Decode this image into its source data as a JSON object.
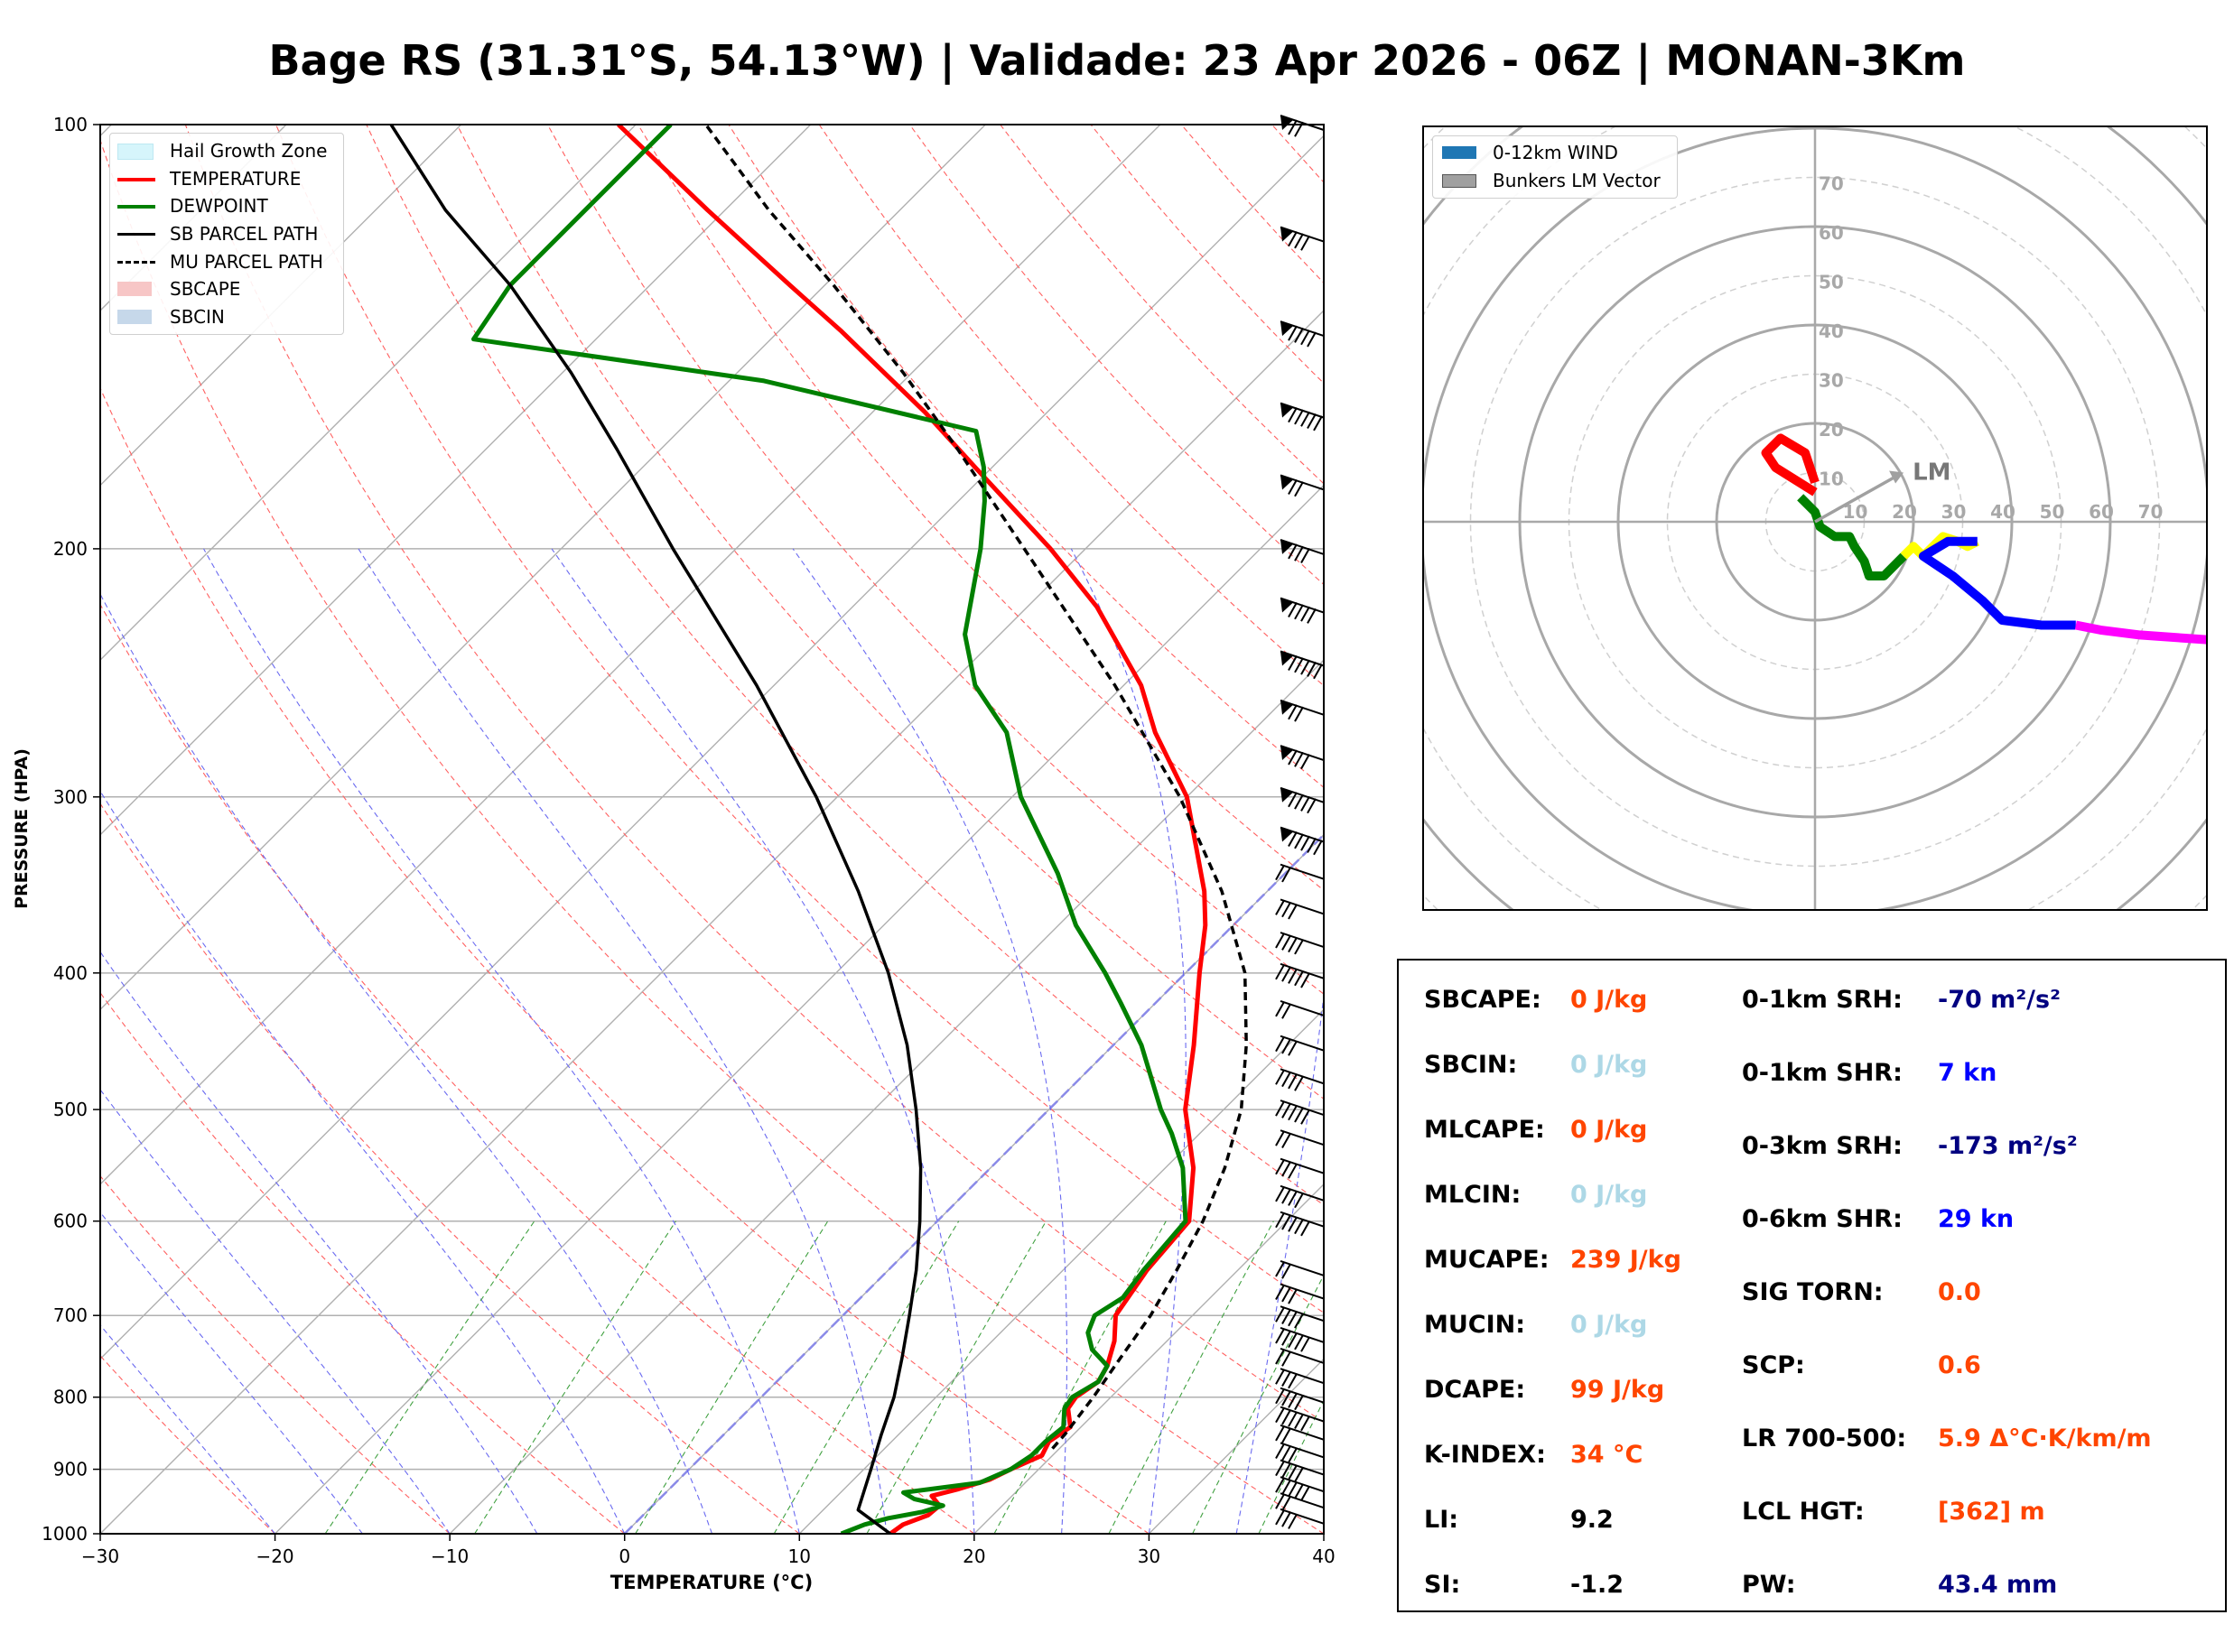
{
  "title": "Bage RS (31.31°S, 54.13°W) | Validade: 23 Apr 2026 - 06Z | MONAN-3Km",
  "chart_data": [
    {
      "type": "line",
      "name": "skew-t",
      "xlabel": "TEMPERATURE (°C)",
      "ylabel": "PRESSURE (HPA)",
      "xlim": [
        -30,
        40
      ],
      "ylim": [
        1000,
        100
      ],
      "y_scale": "log",
      "x_ticks": [
        "−30",
        "−20",
        "−10",
        "0",
        "10",
        "20",
        "30",
        "40"
      ],
      "y_ticks": [
        "1000",
        "900",
        "800",
        "700",
        "600",
        "500",
        "400",
        "300",
        "200",
        "100"
      ],
      "grid": true,
      "legend_position": "top-left",
      "legend": [
        {
          "label": "Hail Growth Zone",
          "color": "#d6f5fb",
          "style": "patch"
        },
        {
          "label": "TEMPERATURE",
          "color": "#ff0000",
          "style": "solid"
        },
        {
          "label": "DEWPOINT",
          "color": "#008000",
          "style": "solid"
        },
        {
          "label": "SB PARCEL PATH",
          "color": "#000000",
          "style": "solid"
        },
        {
          "label": "MU PARCEL PATH",
          "color": "#000000",
          "style": "dashed"
        },
        {
          "label": "SBCAPE",
          "color": "#f7c6c6",
          "style": "patch"
        },
        {
          "label": "SBCIN",
          "color": "#c6d8ea",
          "style": "patch"
        }
      ],
      "series": [
        {
          "name": "TEMPERATURE",
          "color": "#ff0000",
          "points": [
            [
              1000,
              15.2
            ],
            [
              985,
              15.4
            ],
            [
              970,
              16.3
            ],
            [
              955,
              16.4
            ],
            [
              940,
              15.4
            ],
            [
              930,
              16.5
            ],
            [
              915,
              17.8
            ],
            [
              900,
              18.4
            ],
            [
              880,
              19.4
            ],
            [
              860,
              19.0
            ],
            [
              840,
              19.4
            ],
            [
              815,
              18.2
            ],
            [
              800,
              18.0
            ],
            [
              780,
              18.4
            ],
            [
              760,
              18.0
            ],
            [
              730,
              17.0
            ],
            [
              700,
              15.6
            ],
            [
              650,
              14.8
            ],
            [
              600,
              14.4
            ],
            [
              550,
              11.6
            ],
            [
              500,
              7.8
            ],
            [
              450,
              4.6
            ],
            [
              400,
              0.8
            ],
            [
              370,
              -1.6
            ],
            [
              350,
              -3.6
            ],
            [
              300,
              -10.0
            ],
            [
              270,
              -15.5
            ],
            [
              250,
              -19.0
            ],
            [
              220,
              -26.0
            ],
            [
              200,
              -32.0
            ],
            [
              175,
              -41.0
            ],
            [
              160,
              -47.0
            ],
            [
              140,
              -56.5
            ],
            [
              130,
              -62.0
            ],
            [
              115,
              -71.0
            ],
            [
              100,
              -81.0
            ]
          ]
        },
        {
          "name": "DEWPOINT",
          "color": "#008000",
          "points": [
            [
              1000,
              12.4
            ],
            [
              985,
              13.2
            ],
            [
              975,
              14.2
            ],
            [
              965,
              15.8
            ],
            [
              955,
              16.6
            ],
            [
              945,
              14.6
            ],
            [
              935,
              13.6
            ],
            [
              920,
              17.4
            ],
            [
              900,
              18.4
            ],
            [
              880,
              18.8
            ],
            [
              860,
              18.8
            ],
            [
              840,
              19.0
            ],
            [
              815,
              18.0
            ],
            [
              800,
              17.8
            ],
            [
              780,
              18.4
            ],
            [
              760,
              18.0
            ],
            [
              740,
              16.2
            ],
            [
              720,
              15.0
            ],
            [
              700,
              14.4
            ],
            [
              680,
              15.0
            ],
            [
              650,
              14.6
            ],
            [
              600,
              14.2
            ],
            [
              550,
              11.0
            ],
            [
              520,
              8.4
            ],
            [
              500,
              6.4
            ],
            [
              450,
              1.6
            ],
            [
              420,
              -2.0
            ],
            [
              400,
              -4.6
            ],
            [
              370,
              -9.0
            ],
            [
              340,
              -13.0
            ],
            [
              300,
              -19.5
            ],
            [
              270,
              -24.0
            ],
            [
              250,
              -28.5
            ],
            [
              230,
              -32.0
            ],
            [
              200,
              -36.0
            ],
            [
              185,
              -38.5
            ],
            [
              175,
              -40.5
            ],
            [
              165,
              -43.0
            ],
            [
              152,
              -58.0
            ],
            [
              142,
              -77.0
            ],
            [
              130,
              -78.0
            ],
            [
              115,
              -78.0
            ],
            [
              100,
              -78.0
            ]
          ]
        },
        {
          "name": "SB PARCEL PATH",
          "color": "#000000",
          "points": [
            [
              1000,
              15.2
            ],
            [
              962,
              12.0
            ],
            [
              900,
              10.4
            ],
            [
              850,
              9.0
            ],
            [
              800,
              7.6
            ],
            [
              750,
              5.8
            ],
            [
              700,
              3.8
            ],
            [
              650,
              1.6
            ],
            [
              600,
              -1.0
            ],
            [
              550,
              -4.0
            ],
            [
              500,
              -7.6
            ],
            [
              450,
              -11.8
            ],
            [
              400,
              -17.0
            ],
            [
              350,
              -23.4
            ],
            [
              300,
              -31.2
            ],
            [
              250,
              -41.0
            ],
            [
              200,
              -53.6
            ],
            [
              170,
              -62.5
            ],
            [
              150,
              -69.5
            ],
            [
              130,
              -78.0
            ],
            [
              115,
              -86.0
            ],
            [
              100,
              -94.0
            ]
          ]
        },
        {
          "name": "MU PARCEL PATH",
          "color": "#000000",
          "points": [
            [
              870,
              19.6
            ],
            [
              850,
              19.5
            ],
            [
              800,
              19.0
            ],
            [
              750,
              18.3
            ],
            [
              700,
              17.6
            ],
            [
              650,
              16.5
            ],
            [
              600,
              15.2
            ],
            [
              550,
              13.4
            ],
            [
              500,
              11.0
            ],
            [
              450,
              7.6
            ],
            [
              400,
              3.4
            ],
            [
              350,
              -2.6
            ],
            [
              300,
              -10.4
            ],
            [
              250,
              -20.5
            ],
            [
              200,
              -33.5
            ],
            [
              170,
              -43.0
            ],
            [
              150,
              -50.5
            ],
            [
              130,
              -59.5
            ],
            [
              115,
              -67.5
            ],
            [
              100,
              -76.0
            ]
          ]
        }
      ]
    },
    {
      "type": "line",
      "name": "hodograph",
      "grid": true,
      "legend_position": "top-left",
      "legend": [
        {
          "label": "0-12km WIND",
          "color": "#1f77b4",
          "style": "patch"
        },
        {
          "label": "Bunkers LM Vector",
          "color": "#a0a0a0",
          "style": "patch"
        }
      ],
      "ring_labels": [
        "10",
        "20",
        "30",
        "40",
        "50",
        "60",
        "70"
      ],
      "lm_label": "LM",
      "lm_vector": [
        18,
        10
      ],
      "segments": [
        {
          "color": "#ff0000",
          "points": [
            [
              0,
              6
            ],
            [
              -8,
              11
            ],
            [
              -10,
              14
            ],
            [
              -7,
              17
            ],
            [
              -2,
              14
            ],
            [
              0,
              8
            ]
          ]
        },
        {
          "color": "#008000",
          "points": [
            [
              -3,
              5
            ],
            [
              0,
              2
            ],
            [
              1,
              -1
            ],
            [
              4,
              -3
            ],
            [
              7,
              -3
            ],
            [
              8,
              -5
            ],
            [
              10,
              -8
            ],
            [
              11,
              -11
            ],
            [
              14,
              -11
            ],
            [
              18,
              -7
            ]
          ]
        },
        {
          "color": "#ffff00",
          "points": [
            [
              18,
              -7
            ],
            [
              20,
              -5
            ],
            [
              22,
              -7
            ],
            [
              26,
              -3
            ],
            [
              29,
              -4
            ],
            [
              31,
              -5
            ],
            [
              33,
              -4
            ]
          ]
        },
        {
          "color": "#0000ff",
          "points": [
            [
              33,
              -4
            ],
            [
              27,
              -4
            ],
            [
              22,
              -7
            ],
            [
              28,
              -11
            ],
            [
              34,
              -16
            ],
            [
              38,
              -20
            ],
            [
              46,
              -21
            ],
            [
              53,
              -21
            ]
          ]
        },
        {
          "color": "#ff00ff",
          "points": [
            [
              53,
              -21
            ],
            [
              58,
              -22
            ],
            [
              66,
              -23
            ],
            [
              80,
              -24
            ]
          ]
        }
      ]
    }
  ],
  "parameters": [
    {
      "label": "SBCAPE:",
      "value": "0 J/kg",
      "color": "#ff4500"
    },
    {
      "label": "SBCIN:",
      "value": "0 J/kg",
      "color": "#add8e6"
    },
    {
      "label": "MLCAPE:",
      "value": "0 J/kg",
      "color": "#ff4500"
    },
    {
      "label": "MLCIN:",
      "value": "0 J/kg",
      "color": "#add8e6"
    },
    {
      "label": "MUCAPE:",
      "value": "239 J/kg",
      "color": "#ff4500"
    },
    {
      "label": "MUCIN:",
      "value": "0 J/kg",
      "color": "#add8e6"
    },
    {
      "label": "DCAPE:",
      "value": "99 J/kg",
      "color": "#ff4500"
    },
    {
      "label": "K-INDEX:",
      "value": "34 °C",
      "color": "#ff4500"
    },
    {
      "label": "LI:",
      "value": "9.2",
      "color": "#000000"
    },
    {
      "label": "SI:",
      "value": "-1.2",
      "color": "#000000"
    },
    {
      "label": "0-1km SRH:",
      "value": "-70 m²/s²",
      "color": "#000080"
    },
    {
      "label": "0-1km SHR:",
      "value": "7 kn",
      "color": "#0000ff"
    },
    {
      "label": "0-3km SRH:",
      "value": "-173 m²/s²",
      "color": "#000080"
    },
    {
      "label": "0-6km SHR:",
      "value": "29 kn",
      "color": "#0000ff"
    },
    {
      "label": "SIG TORN:",
      "value": "0.0",
      "color": "#ff4500"
    },
    {
      "label": "SCP:",
      "value": "0.6",
      "color": "#ff4500"
    },
    {
      "label": "LR 700-500:",
      "value": "5.9 Δ°C·K/km/m",
      "color": "#ff4500"
    },
    {
      "label": "LCL HGT:",
      "value": "[362] m",
      "color": "#ff4500"
    },
    {
      "label": "PW:",
      "value": "43.4 mm",
      "color": "#000080"
    }
  ]
}
